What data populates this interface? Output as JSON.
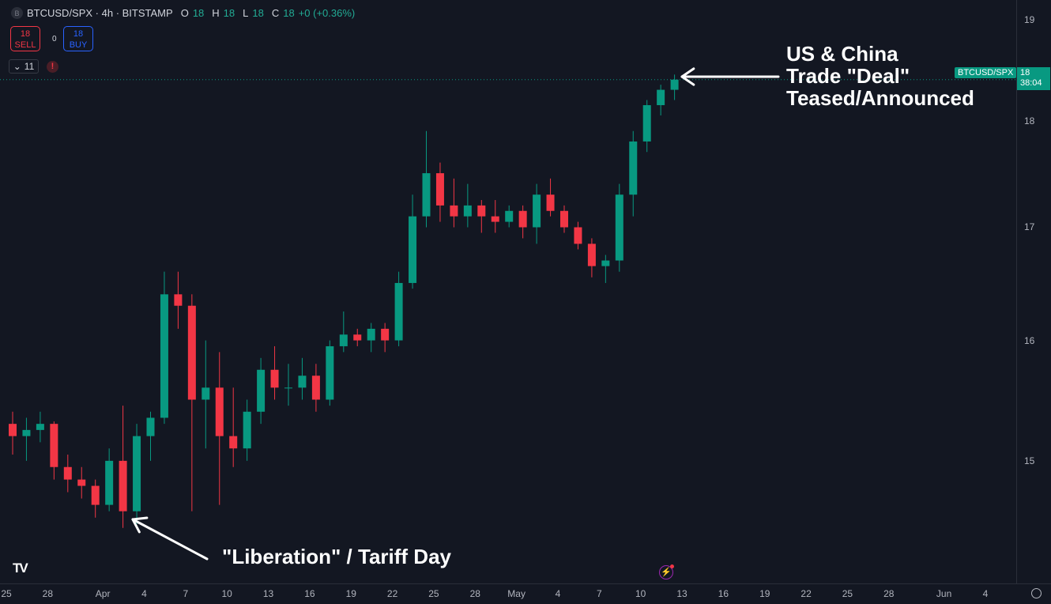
{
  "header": {
    "symbol_logo": "B",
    "title": "BTCUSD/SPX · 4h · BITSTAMP",
    "ohlc": {
      "o_label": "O",
      "o": "18",
      "h_label": "H",
      "h": "18",
      "l_label": "L",
      "l": "18",
      "c_label": "C",
      "c": "18",
      "change": "+0 (+0.36%)"
    }
  },
  "trade": {
    "sell_price": "18",
    "sell_label": "SELL",
    "spread": "0",
    "buy_price": "18",
    "buy_label": "BUY"
  },
  "indicators": {
    "count": "11",
    "alert_icon": "!"
  },
  "price_line": {
    "symbol_tag": "BTCUSD/SPX",
    "price": "18",
    "countdown": "38:04",
    "color": "#089981"
  },
  "annotations": {
    "top": [
      "US & China",
      "Trade \"Deal\"",
      "Teased/Announced"
    ],
    "bottom": "\"Liberation\" / Tariff Day"
  },
  "colors": {
    "up": "#089981",
    "down": "#f23645",
    "background": "#131722"
  },
  "chart_data": {
    "type": "candlestick",
    "scale": "log",
    "ylim": [
      14.0,
      19.2
    ],
    "y_ticks": [
      "19",
      "18",
      "17",
      "16",
      "15"
    ],
    "x_ticks": [
      "25",
      "28",
      "Apr",
      "4",
      "7",
      "10",
      "13",
      "16",
      "19",
      "22",
      "25",
      "28",
      "May",
      "4",
      "7",
      "10",
      "13",
      "16",
      "19",
      "22",
      "25",
      "28",
      "Jun",
      "4"
    ],
    "x_tick_dates": [
      "2025-03-25",
      "2025-03-28",
      "2025-04-01",
      "2025-04-04",
      "2025-04-07",
      "2025-04-10",
      "2025-04-13",
      "2025-04-16",
      "2025-04-19",
      "2025-04-22",
      "2025-04-25",
      "2025-04-28",
      "2025-05-01",
      "2025-05-04",
      "2025-05-07",
      "2025-05-10",
      "2025-05-13",
      "2025-05-16",
      "2025-05-19",
      "2025-05-22",
      "2025-05-25",
      "2025-05-28",
      "2025-06-01",
      "2025-06-04"
    ],
    "candles": [
      [
        "2025-03-25",
        15.3,
        15.4,
        15.05,
        15.2
      ],
      [
        "2025-03-26",
        15.2,
        15.35,
        15.0,
        15.25
      ],
      [
        "2025-03-27",
        15.25,
        15.4,
        15.15,
        15.3
      ],
      [
        "2025-03-28",
        15.3,
        15.32,
        14.85,
        14.95
      ],
      [
        "2025-03-29",
        14.95,
        15.05,
        14.75,
        14.85
      ],
      [
        "2025-03-30",
        14.85,
        14.95,
        14.7,
        14.8
      ],
      [
        "2025-03-31",
        14.8,
        14.85,
        14.55,
        14.65
      ],
      [
        "2025-04-01",
        14.65,
        15.1,
        14.6,
        15.0
      ],
      [
        "2025-04-02",
        15.0,
        15.45,
        14.47,
        14.6
      ],
      [
        "2025-04-03",
        14.6,
        15.3,
        14.5,
        15.2
      ],
      [
        "2025-04-04",
        15.2,
        15.4,
        15.0,
        15.35
      ],
      [
        "2025-04-05",
        15.35,
        16.6,
        15.3,
        16.4
      ],
      [
        "2025-04-06",
        16.4,
        16.6,
        16.1,
        16.3
      ],
      [
        "2025-04-07",
        16.3,
        16.4,
        14.6,
        15.5
      ],
      [
        "2025-04-08",
        15.5,
        16.0,
        15.1,
        15.6
      ],
      [
        "2025-04-09",
        15.6,
        15.9,
        14.65,
        15.2
      ],
      [
        "2025-04-10",
        15.2,
        15.6,
        14.95,
        15.1
      ],
      [
        "2025-04-11",
        15.1,
        15.5,
        15.0,
        15.4
      ],
      [
        "2025-04-12",
        15.4,
        15.85,
        15.3,
        15.75
      ],
      [
        "2025-04-13",
        15.75,
        15.95,
        15.5,
        15.6
      ],
      [
        "2025-04-14",
        15.6,
        15.8,
        15.45,
        15.6
      ],
      [
        "2025-04-15",
        15.6,
        15.85,
        15.5,
        15.7
      ],
      [
        "2025-04-16",
        15.7,
        15.8,
        15.4,
        15.5
      ],
      [
        "2025-04-17",
        15.5,
        16.0,
        15.45,
        15.95
      ],
      [
        "2025-04-18",
        15.95,
        16.25,
        15.9,
        16.05
      ],
      [
        "2025-04-19",
        16.05,
        16.1,
        15.95,
        16.0
      ],
      [
        "2025-04-20",
        16.0,
        16.15,
        15.9,
        16.1
      ],
      [
        "2025-04-21",
        16.1,
        16.15,
        15.9,
        16.0
      ],
      [
        "2025-04-22",
        16.0,
        16.6,
        15.95,
        16.5
      ],
      [
        "2025-04-23",
        16.5,
        17.3,
        16.45,
        17.1
      ],
      [
        "2025-04-24",
        17.1,
        17.9,
        17.0,
        17.5
      ],
      [
        "2025-04-25",
        17.5,
        17.6,
        17.05,
        17.2
      ],
      [
        "2025-04-26",
        17.2,
        17.45,
        17.0,
        17.1
      ],
      [
        "2025-04-27",
        17.1,
        17.4,
        17.0,
        17.2
      ],
      [
        "2025-04-28",
        17.2,
        17.25,
        16.95,
        17.1
      ],
      [
        "2025-04-29",
        17.1,
        17.25,
        16.95,
        17.05
      ],
      [
        "2025-04-30",
        17.05,
        17.2,
        17.0,
        17.15
      ],
      [
        "2025-05-01",
        17.15,
        17.2,
        16.9,
        17.0
      ],
      [
        "2025-05-02",
        17.0,
        17.4,
        16.85,
        17.3
      ],
      [
        "2025-05-03",
        17.3,
        17.45,
        17.1,
        17.15
      ],
      [
        "2025-05-04",
        17.15,
        17.2,
        16.95,
        17.0
      ],
      [
        "2025-05-05",
        17.0,
        17.05,
        16.8,
        16.85
      ],
      [
        "2025-05-06",
        16.85,
        16.9,
        16.55,
        16.65
      ],
      [
        "2025-05-07",
        16.65,
        16.75,
        16.5,
        16.7
      ],
      [
        "2025-05-08",
        16.7,
        17.4,
        16.6,
        17.3
      ],
      [
        "2025-05-09",
        17.3,
        17.9,
        17.1,
        17.8
      ],
      [
        "2025-05-10",
        17.8,
        18.2,
        17.7,
        18.15
      ],
      [
        "2025-05-11",
        18.15,
        18.35,
        18.05,
        18.3
      ],
      [
        "2025-05-12",
        18.3,
        18.45,
        18.2,
        18.4
      ]
    ],
    "last_price": 18.4
  }
}
